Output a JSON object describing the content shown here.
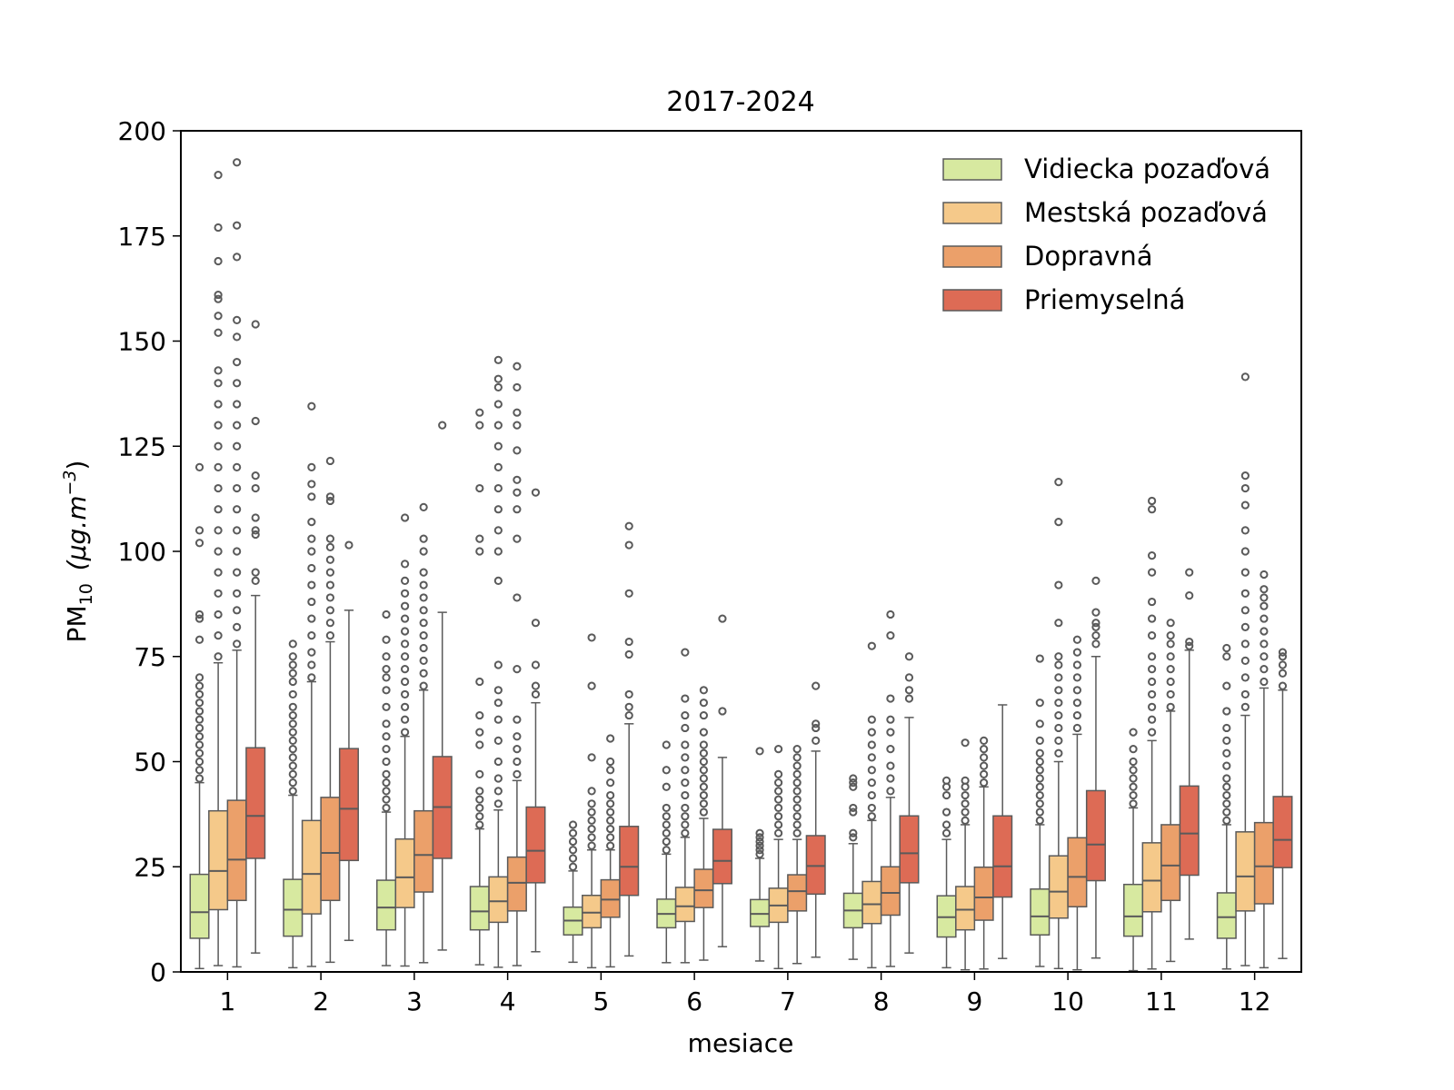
{
  "chart_data": {
    "type": "box",
    "title": "2017-2024",
    "xlabel": "mesiace",
    "ylabel": "PM",
    "ylabel_sub": "10",
    "ylabel_unit": "(μg.m",
    "ylabel_unit_sup": "−3",
    "ylabel_unit_close": ")",
    "ylim": [
      0,
      200
    ],
    "yticks": [
      0,
      25,
      50,
      75,
      100,
      125,
      150,
      175,
      200
    ],
    "categories": [
      "1",
      "2",
      "3",
      "4",
      "5",
      "6",
      "7",
      "8",
      "9",
      "10",
      "11",
      "12"
    ],
    "legend_position": "top-right",
    "grid": false,
    "series": [
      {
        "name": "Vidiecka pozaďová",
        "color": "#d7e9a0",
        "boxes": [
          {
            "whisker_low": 0.8,
            "q1": 8,
            "median": 14.2,
            "q3": 23.2,
            "whisker_high": 45,
            "outliers": [
              46,
              48,
              50,
              52,
              54,
              56,
              58,
              60,
              62,
              64,
              66,
              68,
              70,
              79,
              84,
              85,
              102,
              105,
              120
            ]
          },
          {
            "whisker_low": 1,
            "q1": 8.5,
            "median": 14.8,
            "q3": 22,
            "whisker_high": 42,
            "outliers": [
              43,
              45,
              47,
              49,
              51,
              53,
              55,
              57,
              59,
              61,
              63,
              66,
              69,
              71,
              73,
              75,
              78
            ]
          },
          {
            "whisker_low": 1.5,
            "q1": 10,
            "median": 15.3,
            "q3": 21.8,
            "whisker_high": 38,
            "outliers": [
              39,
              41,
              43,
              45,
              47,
              50,
              53,
              56,
              59,
              63,
              67,
              70,
              72,
              75,
              79,
              85
            ]
          },
          {
            "whisker_low": 1.7,
            "q1": 10,
            "median": 14.4,
            "q3": 20.3,
            "whisker_high": 34,
            "outliers": [
              35,
              37,
              39,
              41,
              43,
              47,
              54,
              57,
              61,
              69,
              100,
              103,
              115,
              130,
              133
            ]
          },
          {
            "whisker_low": 2.3,
            "q1": 8.8,
            "median": 12.2,
            "q3": 15.4,
            "whisker_high": 24,
            "outliers": [
              25,
              27,
              29,
              31,
              33,
              35
            ]
          },
          {
            "whisker_low": 2.2,
            "q1": 10.5,
            "median": 13.8,
            "q3": 17.3,
            "whisker_high": 28,
            "outliers": [
              29,
              31,
              33,
              35,
              37,
              39,
              44,
              48,
              54
            ]
          },
          {
            "whisker_low": 2.6,
            "q1": 10.8,
            "median": 13.8,
            "q3": 17.2,
            "whisker_high": 27,
            "outliers": [
              28,
              29,
              30,
              31,
              32,
              33,
              52.5
            ]
          },
          {
            "whisker_low": 3,
            "q1": 10.5,
            "median": 14.6,
            "q3": 18.7,
            "whisker_high": 30.5,
            "outliers": [
              32,
              33,
              38,
              39,
              44,
              45,
              46
            ]
          },
          {
            "whisker_low": 1,
            "q1": 8.3,
            "median": 13,
            "q3": 18.1,
            "whisker_high": 31.5,
            "outliers": [
              33,
              35,
              38,
              42,
              44,
              45.5
            ]
          },
          {
            "whisker_low": 1.3,
            "q1": 8.8,
            "median": 13.2,
            "q3": 19.7,
            "whisker_high": 35,
            "outliers": [
              36,
              38,
              40,
              42,
              44,
              46,
              48,
              50,
              52,
              55,
              59,
              64,
              74.5
            ]
          },
          {
            "whisker_low": 0.3,
            "q1": 8.5,
            "median": 13.2,
            "q3": 20.8,
            "whisker_high": 39,
            "outliers": [
              40,
              42,
              44,
              46,
              48,
              50,
              53,
              57
            ]
          },
          {
            "whisker_low": 0.7,
            "q1": 8,
            "median": 13,
            "q3": 18.8,
            "whisker_high": 35,
            "outliers": [
              36,
              38,
              40,
              42,
              44,
              46,
              49,
              52,
              55,
              58,
              62,
              68,
              75,
              77
            ]
          }
        ]
      },
      {
        "name": "Mestská pozaďová",
        "color": "#f5c98a",
        "boxes": [
          {
            "whisker_low": 1.5,
            "q1": 14.8,
            "median": 24,
            "q3": 38.3,
            "whisker_high": 73.5,
            "outliers": [
              75,
              80,
              85,
              90,
              95,
              100,
              105,
              110,
              115,
              120,
              125,
              130,
              135,
              140,
              143,
              152,
              156,
              160,
              161,
              169,
              177,
              189.5
            ]
          },
          {
            "whisker_low": 1.3,
            "q1": 13.8,
            "median": 23.3,
            "q3": 36,
            "whisker_high": 69,
            "outliers": [
              70,
              73,
              76,
              80,
              84,
              88,
              92,
              96,
              100,
              103,
              107,
              113,
              116,
              120,
              134.5
            ]
          },
          {
            "whisker_low": 1.4,
            "q1": 15.3,
            "median": 22.5,
            "q3": 31.6,
            "whisker_high": 56,
            "outliers": [
              57,
              60,
              63,
              66,
              69,
              72,
              75,
              78,
              81,
              84,
              87,
              90,
              93,
              97,
              108
            ]
          },
          {
            "whisker_low": 1.1,
            "q1": 11.8,
            "median": 16.8,
            "q3": 22.6,
            "whisker_high": 38.5,
            "outliers": [
              40,
              43,
              46,
              50,
              55,
              60,
              64,
              67,
              73,
              93,
              100,
              105,
              110,
              115,
              120,
              125,
              130,
              135,
              139,
              141,
              145.5
            ]
          },
          {
            "whisker_low": 1,
            "q1": 10.5,
            "median": 14.1,
            "q3": 18.2,
            "whisker_high": 29,
            "outliers": [
              30,
              32,
              34,
              36,
              38,
              40,
              43,
              51,
              68,
              79.5
            ]
          },
          {
            "whisker_low": 2.2,
            "q1": 12,
            "median": 15.6,
            "q3": 20.1,
            "whisker_high": 32,
            "outliers": [
              33,
              35,
              37,
              39,
              42,
              45,
              48,
              51,
              54,
              58,
              61,
              65,
              76
            ]
          },
          {
            "whisker_low": 0.8,
            "q1": 11.8,
            "median": 15.8,
            "q3": 19.9,
            "whisker_high": 31.5,
            "outliers": [
              33,
              35,
              37,
              39,
              41,
              43,
              45,
              47,
              53
            ]
          },
          {
            "whisker_low": 1,
            "q1": 11.5,
            "median": 16.1,
            "q3": 21.5,
            "whisker_high": 36,
            "outliers": [
              37,
              39,
              42,
              45,
              48,
              51,
              54,
              57,
              60,
              77.5
            ]
          },
          {
            "whisker_low": 0.5,
            "q1": 10,
            "median": 14.8,
            "q3": 20.3,
            "whisker_high": 35,
            "outliers": [
              36,
              38,
              40,
              42,
              44,
              45.5,
              54.5
            ]
          },
          {
            "whisker_low": 0.8,
            "q1": 12.8,
            "median": 19.1,
            "q3": 27.6,
            "whisker_high": 50,
            "outliers": [
              52,
              55,
              58,
              61,
              64,
              67,
              70,
              73,
              75,
              83,
              92,
              107,
              116.5
            ]
          },
          {
            "whisker_low": 0.7,
            "q1": 14.3,
            "median": 21.7,
            "q3": 30.7,
            "whisker_high": 55,
            "outliers": [
              57,
              60,
              63,
              66,
              69,
              72,
              75,
              80,
              84,
              88,
              95,
              99,
              110,
              112
            ]
          },
          {
            "whisker_low": 1.5,
            "q1": 14.5,
            "median": 22.7,
            "q3": 33.3,
            "whisker_high": 61,
            "outliers": [
              63,
              66,
              70,
              74,
              78,
              82,
              86,
              90,
              95,
              100,
              105,
              111,
              115,
              118,
              141.5
            ]
          }
        ]
      },
      {
        "name": "Dopravná",
        "color": "#eba06a",
        "boxes": [
          {
            "whisker_low": 1.2,
            "q1": 17,
            "median": 26.7,
            "q3": 40.8,
            "whisker_high": 76.5,
            "outliers": [
              78,
              82,
              86,
              90,
              95,
              100,
              105,
              110,
              115,
              120,
              125,
              130,
              135,
              140,
              145,
              151,
              155,
              170,
              177.5,
              192.5
            ]
          },
          {
            "whisker_low": 2.3,
            "q1": 17,
            "median": 28.3,
            "q3": 41.5,
            "whisker_high": 78.5,
            "outliers": [
              80,
              83,
              86,
              89,
              92,
              95,
              98,
              101,
              103,
              112,
              113,
              121.5
            ]
          },
          {
            "whisker_low": 2.2,
            "q1": 19,
            "median": 27.8,
            "q3": 38.3,
            "whisker_high": 67,
            "outliers": [
              68,
              71,
              74,
              77,
              80,
              83,
              86,
              89,
              92,
              95,
              100,
              103,
              110.5
            ]
          },
          {
            "whisker_low": 1.5,
            "q1": 14.5,
            "median": 21.2,
            "q3": 27.3,
            "whisker_high": 45.5,
            "outliers": [
              47,
              50,
              53,
              56,
              60,
              72,
              89,
              103,
              110,
              114,
              117,
              124,
              130,
              133,
              139,
              144
            ]
          },
          {
            "whisker_low": 1.2,
            "q1": 13,
            "median": 17.2,
            "q3": 21.9,
            "whisker_high": 29,
            "outliers": [
              30,
              32,
              34,
              36,
              38,
              40,
              42,
              45,
              48,
              50,
              55.5
            ]
          },
          {
            "whisker_low": 2.8,
            "q1": 15.3,
            "median": 19.4,
            "q3": 24.4,
            "whisker_high": 36.5,
            "outliers": [
              38,
              40,
              42,
              44,
              46,
              48,
              50,
              52,
              54,
              57,
              61,
              64,
              67
            ]
          },
          {
            "whisker_low": 2,
            "q1": 14.5,
            "median": 19.2,
            "q3": 23.1,
            "whisker_high": 31.5,
            "outliers": [
              33,
              35,
              37,
              39,
              41,
              43,
              45,
              47,
              49,
              51,
              53
            ]
          },
          {
            "whisker_low": 1.3,
            "q1": 13.5,
            "median": 18.8,
            "q3": 25,
            "whisker_high": 41.5,
            "outliers": [
              43,
              46,
              49,
              53,
              57,
              60,
              65,
              80,
              85
            ]
          },
          {
            "whisker_low": 0.7,
            "q1": 12.3,
            "median": 17.7,
            "q3": 24.9,
            "whisker_high": 44,
            "outliers": [
              45,
              47,
              49,
              51,
              53,
              55
            ]
          },
          {
            "whisker_low": 0.5,
            "q1": 15.5,
            "median": 22.6,
            "q3": 31.9,
            "whisker_high": 56.5,
            "outliers": [
              58,
              61,
              64,
              67,
              70,
              73,
              76,
              79
            ]
          },
          {
            "whisker_low": 2.5,
            "q1": 17,
            "median": 25.3,
            "q3": 35,
            "whisker_high": 62,
            "outliers": [
              63,
              66,
              69,
              72,
              75,
              78,
              80,
              83
            ]
          },
          {
            "whisker_low": 1,
            "q1": 16.2,
            "median": 25.1,
            "q3": 35.5,
            "whisker_high": 67.5,
            "outliers": [
              69,
              72,
              75,
              78,
              81,
              84,
              87,
              89,
              91,
              94.5
            ]
          }
        ]
      },
      {
        "name": "Priemyselná",
        "color": "#dd6b55",
        "boxes": [
          {
            "whisker_low": 4.5,
            "q1": 27,
            "median": 37.1,
            "q3": 53.3,
            "whisker_high": 89.5,
            "outliers": [
              93,
              95,
              104,
              105,
              108,
              115,
              118,
              131,
              154
            ]
          },
          {
            "whisker_low": 7.5,
            "q1": 26.5,
            "median": 38.8,
            "q3": 53.1,
            "whisker_high": 86,
            "outliers": [
              101.5
            ]
          },
          {
            "whisker_low": 5.2,
            "q1": 27,
            "median": 39.2,
            "q3": 51.2,
            "whisker_high": 85.5,
            "outliers": [
              130
            ]
          },
          {
            "whisker_low": 4.8,
            "q1": 21.2,
            "median": 28.8,
            "q3": 39.2,
            "whisker_high": 64,
            "outliers": [
              66,
              68,
              73,
              83,
              114
            ]
          },
          {
            "whisker_low": 3.8,
            "q1": 18.2,
            "median": 25,
            "q3": 34.6,
            "whisker_high": 59,
            "outliers": [
              61,
              63,
              66,
              75.5,
              78.5,
              90,
              101.5,
              106
            ]
          },
          {
            "whisker_low": 6,
            "q1": 21,
            "median": 26.4,
            "q3": 33.9,
            "whisker_high": 51,
            "outliers": [
              62,
              84
            ]
          },
          {
            "whisker_low": 3.5,
            "q1": 18.5,
            "median": 25.2,
            "q3": 32.4,
            "whisker_high": 52.5,
            "outliers": [
              55,
              58,
              59,
              68
            ]
          },
          {
            "whisker_low": 4.5,
            "q1": 21.2,
            "median": 28.2,
            "q3": 37.1,
            "whisker_high": 60.5,
            "outliers": [
              65,
              67,
              70,
              75
            ]
          },
          {
            "whisker_low": 3.2,
            "q1": 17.8,
            "median": 25.1,
            "q3": 37.1,
            "whisker_high": 63.5,
            "outliers": []
          },
          {
            "whisker_low": 3.3,
            "q1": 21.7,
            "median": 30.3,
            "q3": 43.1,
            "whisker_high": 75,
            "outliers": [
              78,
              80,
              82,
              83,
              85.5,
              93
            ]
          },
          {
            "whisker_low": 7.8,
            "q1": 23,
            "median": 32.9,
            "q3": 44.2,
            "whisker_high": 76.5,
            "outliers": [
              77.5,
              78.5,
              89.5,
              95
            ]
          },
          {
            "whisker_low": 3.2,
            "q1": 24.8,
            "median": 31.4,
            "q3": 41.7,
            "whisker_high": 67,
            "outliers": [
              68,
              71,
              73,
              75,
              76
            ]
          }
        ]
      }
    ]
  }
}
